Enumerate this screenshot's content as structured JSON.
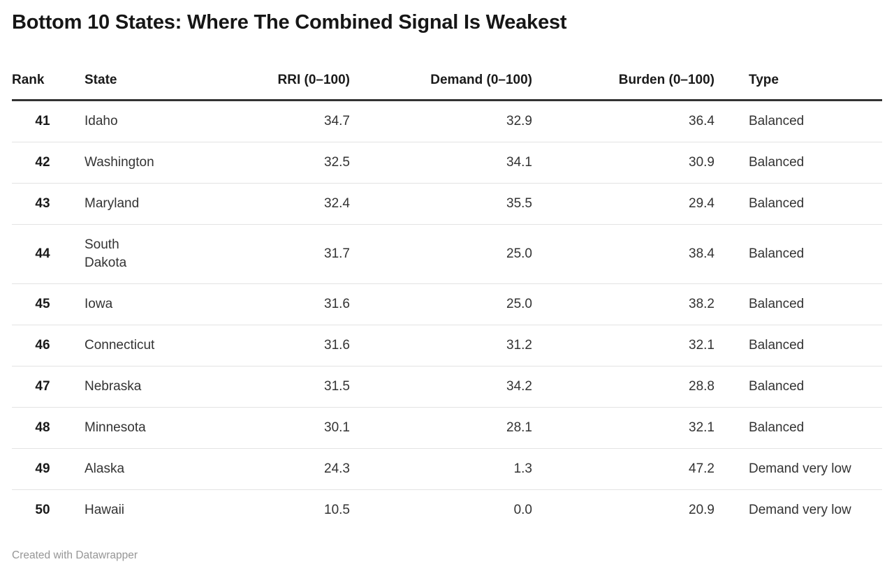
{
  "title": "Bottom 10 States: Where The Combined Signal Is Weakest",
  "chart_data": {
    "type": "table",
    "title": "Bottom 10 States: Where The Combined Signal Is Weakest",
    "columns": [
      {
        "key": "rank",
        "label": "Rank"
      },
      {
        "key": "state",
        "label": "State"
      },
      {
        "key": "rri",
        "label": "RRI (0–100)",
        "format": "fixed1"
      },
      {
        "key": "demand",
        "label": "Demand (0–100)",
        "format": "fixed1"
      },
      {
        "key": "burden",
        "label": "Burden (0–100)",
        "format": "fixed1"
      },
      {
        "key": "type",
        "label": "Type"
      }
    ],
    "rows": [
      {
        "rank": 41,
        "state": "Idaho",
        "rri": 34.7,
        "demand": 32.9,
        "burden": 36.4,
        "type": "Balanced"
      },
      {
        "rank": 42,
        "state": "Washington",
        "rri": 32.5,
        "demand": 34.1,
        "burden": 30.9,
        "type": "Balanced"
      },
      {
        "rank": 43,
        "state": "Maryland",
        "rri": 32.4,
        "demand": 35.5,
        "burden": 29.4,
        "type": "Balanced"
      },
      {
        "rank": 44,
        "state": "South Dakota",
        "rri": 31.7,
        "demand": 25.0,
        "burden": 38.4,
        "type": "Balanced"
      },
      {
        "rank": 45,
        "state": "Iowa",
        "rri": 31.6,
        "demand": 25.0,
        "burden": 38.2,
        "type": "Balanced"
      },
      {
        "rank": 46,
        "state": "Connecticut",
        "rri": 31.6,
        "demand": 31.2,
        "burden": 32.1,
        "type": "Balanced"
      },
      {
        "rank": 47,
        "state": "Nebraska",
        "rri": 31.5,
        "demand": 34.2,
        "burden": 28.8,
        "type": "Balanced"
      },
      {
        "rank": 48,
        "state": "Minnesota",
        "rri": 30.1,
        "demand": 28.1,
        "burden": 32.1,
        "type": "Balanced"
      },
      {
        "rank": 49,
        "state": "Alaska",
        "rri": 24.3,
        "demand": 1.3,
        "burden": 47.2,
        "type": "Demand very low"
      },
      {
        "rank": 50,
        "state": "Hawaii",
        "rri": 10.5,
        "demand": 0.0,
        "burden": 20.9,
        "type": "Demand very low"
      }
    ],
    "value_range": [
      0,
      100
    ]
  },
  "footer": {
    "credit": "Created with Datawrapper"
  },
  "colors": {
    "title_text": "#161616",
    "header_text": "#1a1a1a",
    "body_text": "#333333",
    "header_rule": "#333333",
    "row_separator": "#e3e3e3",
    "credit_text": "#969696",
    "background": "#ffffff"
  }
}
